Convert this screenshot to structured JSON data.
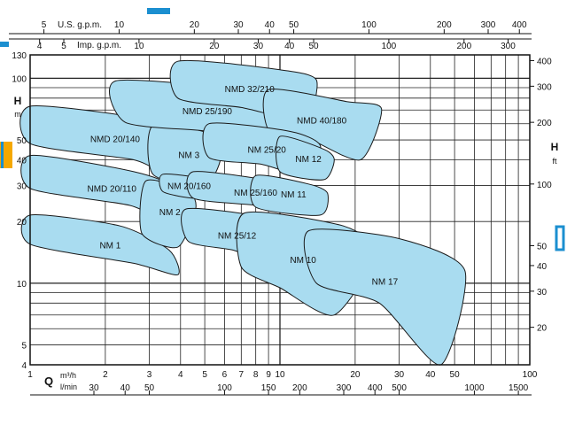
{
  "chart_data": {
    "type": "area",
    "title": "",
    "xlabel": "Q",
    "ylabel": "H",
    "x_unit": "m³/h",
    "x_unit_alt": "l/min",
    "y_unit_left": "m",
    "y_unit_right": "ft",
    "top_scales": [
      {
        "label": "U.S. g.p.m.",
        "ticks": [
          "5",
          "10",
          "20",
          "30",
          "40",
          "50",
          "100",
          "200",
          "300",
          "400"
        ]
      },
      {
        "label": "Imp. g.p.m.",
        "ticks": [
          "4",
          "5",
          "10",
          "20",
          "30",
          "40",
          "50",
          "100",
          "200",
          "300"
        ]
      }
    ],
    "x_axis_ticks": [
      "1",
      "2",
      "3",
      "4",
      "5",
      "6",
      "7",
      "8",
      "9",
      "10",
      "20",
      "30",
      "40",
      "50",
      "100"
    ],
    "x_axis_alt_ticks": [
      "30",
      "40",
      "50",
      "100",
      "150",
      "200",
      "300",
      "400",
      "500",
      "1000",
      "1500"
    ],
    "y_axis_left_ticks": [
      "4",
      "5",
      "10",
      "20",
      "30",
      "40",
      "50",
      "100",
      "130"
    ],
    "y_axis_right_ticks": [
      "20",
      "30",
      "40",
      "50",
      "100",
      "200",
      "300",
      "400"
    ],
    "xscale": "log",
    "yscale": "log",
    "xlim": [
      1,
      100
    ],
    "ylim": [
      4,
      130
    ],
    "grid": true,
    "fill_color": "#a9dcf0",
    "series": [
      {
        "name": "NM 1",
        "points": [
          [
            1,
            21.5
          ],
          [
            2.3,
            19
          ],
          [
            3.6,
            14.5
          ],
          [
            3.9,
            11
          ],
          [
            2.6,
            12.5
          ],
          [
            1,
            15.5
          ]
        ]
      },
      {
        "name": "NMD 20/110",
        "points": [
          [
            1,
            42
          ],
          [
            2.6,
            35
          ],
          [
            3.8,
            29
          ],
          [
            3.7,
            19.5
          ],
          [
            2.5,
            24
          ],
          [
            1,
            29
          ]
        ]
      },
      {
        "name": "NMD 20/140",
        "points": [
          [
            1,
            73
          ],
          [
            3,
            63
          ],
          [
            3.8,
            55
          ],
          [
            3.7,
            33.5
          ],
          [
            2.6,
            40
          ],
          [
            1,
            48
          ]
        ]
      },
      {
        "name": "NM 2",
        "points": [
          [
            2.9,
            31.5
          ],
          [
            4.3,
            28
          ],
          [
            4.6,
            23
          ],
          [
            3.9,
            15
          ],
          [
            2.8,
            17.5
          ]
        ]
      },
      {
        "name": "NM 3",
        "points": [
          [
            3.1,
            59
          ],
          [
            5.4,
            53
          ],
          [
            5.8,
            41
          ],
          [
            5.0,
            30
          ],
          [
            3.1,
            34
          ]
        ]
      },
      {
        "name": "NM 20/160",
        "points": [
          [
            3.4,
            34
          ],
          [
            5.2,
            32
          ],
          [
            5.5,
            29
          ],
          [
            4.6,
            26
          ],
          [
            3.4,
            28
          ]
        ]
      },
      {
        "name": "NMD 25/190",
        "points": [
          [
            2.2,
            97
          ],
          [
            7,
            88
          ],
          [
            9.8,
            78
          ],
          [
            9.5,
            47
          ],
          [
            5.2,
            55
          ],
          [
            2.4,
            61
          ]
        ]
      },
      {
        "name": "NMD 32/210",
        "points": [
          [
            3.9,
            121
          ],
          [
            10,
            110
          ],
          [
            14,
            98
          ],
          [
            12.5,
            63
          ],
          [
            7,
            72
          ],
          [
            3.9,
            80
          ]
        ]
      },
      {
        "name": "NMD 40/180",
        "points": [
          [
            9,
            88
          ],
          [
            18.5,
            77
          ],
          [
            25.5,
            71
          ],
          [
            21,
            40
          ],
          [
            12.5,
            52
          ],
          [
            9,
            56
          ]
        ]
      },
      {
        "name": "NM 25/20",
        "points": [
          [
            5.2,
            60
          ],
          [
            11,
            55
          ],
          [
            14.5,
            47
          ],
          [
            13.2,
            33
          ],
          [
            8.5,
            38
          ],
          [
            5.2,
            41
          ]
        ]
      },
      {
        "name": "NM 12",
        "points": [
          [
            10,
            52
          ],
          [
            15,
            45
          ],
          [
            16.5,
            40
          ],
          [
            15,
            32
          ],
          [
            10,
            35
          ]
        ]
      },
      {
        "name": "NM 25/160",
        "points": [
          [
            4.5,
            35
          ],
          [
            9.5,
            31.5
          ],
          [
            13.5,
            28.5
          ],
          [
            12.5,
            22
          ],
          [
            8,
            24
          ],
          [
            4.5,
            26
          ]
        ]
      },
      {
        "name": "NM 11",
        "points": [
          [
            8,
            33.5
          ],
          [
            13,
            30.5
          ],
          [
            15.5,
            27.5
          ],
          [
            14.5,
            21.5
          ],
          [
            8,
            23.5
          ]
        ]
      },
      {
        "name": "NM 25/12",
        "points": [
          [
            4.2,
            23
          ],
          [
            8.5,
            21
          ],
          [
            10,
            17.5
          ],
          [
            9.3,
            12.5
          ],
          [
            6.5,
            14.5
          ],
          [
            4.3,
            16
          ]
        ]
      },
      {
        "name": "NM 10",
        "points": [
          [
            7.2,
            22
          ],
          [
            18,
            19
          ],
          [
            24,
            14
          ],
          [
            16.5,
            7
          ],
          [
            10,
            9.5
          ],
          [
            7,
            12
          ]
        ]
      },
      {
        "name": "NM 17",
        "points": [
          [
            13,
            18
          ],
          [
            30,
            16.5
          ],
          [
            55,
            11.5
          ],
          [
            44,
            4
          ],
          [
            25,
            8
          ],
          [
            14,
            10
          ]
        ]
      }
    ]
  }
}
